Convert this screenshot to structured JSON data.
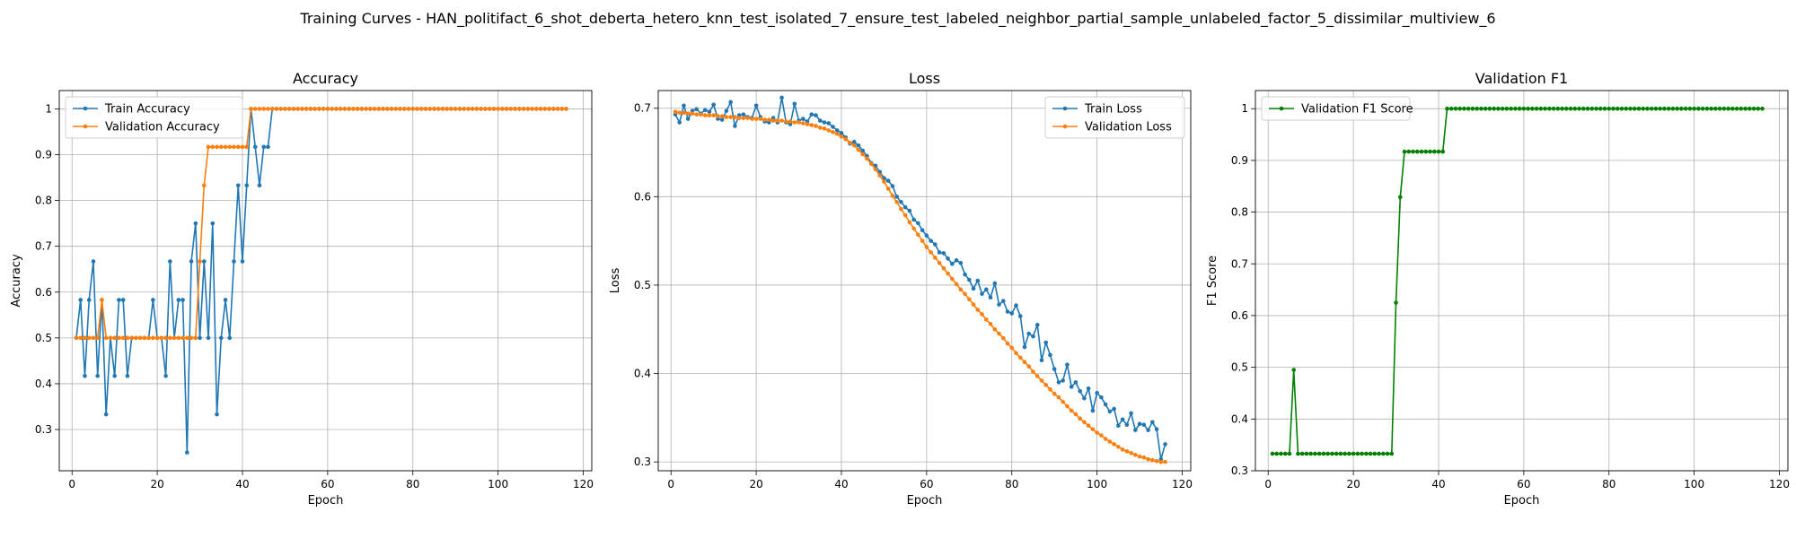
{
  "figure": {
    "title": "Training Curves - HAN_politifact_6_shot_deberta_hetero_knn_test_isolated_7_ensure_test_labeled_neighbor_partial_sample_unlabeled_factor_5_dissimilar_multiview_6"
  },
  "colors": {
    "blue": "#1f77b4",
    "orange": "#ff7f0e",
    "green": "#008000",
    "grid": "#b0b0b0"
  },
  "chart_data": [
    {
      "type": "line",
      "title": "Accuracy",
      "xlabel": "Epoch",
      "ylabel": "Accuracy",
      "xlim": [
        -3,
        122
      ],
      "ylim": [
        0.21,
        1.04
      ],
      "xticks": [
        0,
        20,
        40,
        60,
        80,
        100,
        120
      ],
      "yticks": [
        0.3,
        0.4,
        0.5,
        0.6,
        0.7,
        0.8,
        0.9,
        1.0
      ],
      "grid": true,
      "legend": "upper left",
      "series": [
        {
          "name": "Train Accuracy",
          "color": "#1f77b4",
          "x_start": 1,
          "values": [
            0.5,
            0.583,
            0.417,
            0.583,
            0.667,
            0.417,
            0.583,
            0.333,
            0.5,
            0.417,
            0.583,
            0.583,
            0.417,
            0.5,
            0.5,
            0.5,
            0.5,
            0.5,
            0.583,
            0.5,
            0.5,
            0.417,
            0.667,
            0.5,
            0.583,
            0.583,
            0.25,
            0.667,
            0.75,
            0.5,
            0.667,
            0.5,
            0.75,
            0.333,
            0.5,
            0.583,
            0.5,
            0.667,
            0.833,
            0.667,
            0.833,
            1.0,
            0.917,
            0.833,
            0.917,
            0.917,
            1.0,
            1.0,
            1.0,
            1.0,
            1.0,
            1.0,
            1.0,
            1.0,
            1.0,
            1.0,
            1.0,
            1.0,
            1.0,
            1.0,
            1.0,
            1.0,
            1.0,
            1.0,
            1.0,
            1.0,
            1.0,
            1.0,
            1.0,
            1.0,
            1.0,
            1.0,
            1.0,
            1.0,
            1.0,
            1.0,
            1.0,
            1.0,
            1.0,
            1.0,
            1.0,
            1.0,
            1.0,
            1.0,
            1.0,
            1.0,
            1.0,
            1.0,
            1.0,
            1.0,
            1.0,
            1.0,
            1.0,
            1.0,
            1.0,
            1.0,
            1.0,
            1.0,
            1.0,
            1.0,
            1.0,
            1.0,
            1.0,
            1.0,
            1.0,
            1.0,
            1.0,
            1.0,
            1.0,
            1.0,
            1.0,
            1.0,
            1.0,
            1.0,
            1.0,
            1.0
          ]
        },
        {
          "name": "Validation Accuracy",
          "color": "#ff7f0e",
          "x_start": 1,
          "values": [
            0.5,
            0.5,
            0.5,
            0.5,
            0.5,
            0.5,
            0.583,
            0.5,
            0.5,
            0.5,
            0.5,
            0.5,
            0.5,
            0.5,
            0.5,
            0.5,
            0.5,
            0.5,
            0.5,
            0.5,
            0.5,
            0.5,
            0.5,
            0.5,
            0.5,
            0.5,
            0.5,
            0.5,
            0.5,
            0.667,
            0.833,
            0.917,
            0.917,
            0.917,
            0.917,
            0.917,
            0.917,
            0.917,
            0.917,
            0.917,
            0.917,
            1.0,
            1.0,
            1.0,
            1.0,
            1.0,
            1.0,
            1.0,
            1.0,
            1.0,
            1.0,
            1.0,
            1.0,
            1.0,
            1.0,
            1.0,
            1.0,
            1.0,
            1.0,
            1.0,
            1.0,
            1.0,
            1.0,
            1.0,
            1.0,
            1.0,
            1.0,
            1.0,
            1.0,
            1.0,
            1.0,
            1.0,
            1.0,
            1.0,
            1.0,
            1.0,
            1.0,
            1.0,
            1.0,
            1.0,
            1.0,
            1.0,
            1.0,
            1.0,
            1.0,
            1.0,
            1.0,
            1.0,
            1.0,
            1.0,
            1.0,
            1.0,
            1.0,
            1.0,
            1.0,
            1.0,
            1.0,
            1.0,
            1.0,
            1.0,
            1.0,
            1.0,
            1.0,
            1.0,
            1.0,
            1.0,
            1.0,
            1.0,
            1.0,
            1.0,
            1.0,
            1.0,
            1.0,
            1.0,
            1.0,
            1.0
          ]
        }
      ]
    },
    {
      "type": "line",
      "title": "Loss",
      "xlabel": "Epoch",
      "ylabel": "Loss",
      "xlim": [
        -3,
        122
      ],
      "ylim": [
        0.29,
        0.72
      ],
      "xticks": [
        0,
        20,
        40,
        60,
        80,
        100,
        120
      ],
      "yticks": [
        0.3,
        0.4,
        0.5,
        0.6,
        0.7
      ],
      "grid": true,
      "legend": "upper right",
      "series": [
        {
          "name": "Train Loss",
          "color": "#1f77b4",
          "x_start": 1,
          "values": [
            0.693,
            0.684,
            0.703,
            0.688,
            0.697,
            0.699,
            0.694,
            0.698,
            0.696,
            0.704,
            0.688,
            0.687,
            0.697,
            0.707,
            0.68,
            0.692,
            0.693,
            0.69,
            0.689,
            0.703,
            0.69,
            0.685,
            0.684,
            0.689,
            0.684,
            0.712,
            0.684,
            0.682,
            0.705,
            0.686,
            0.688,
            0.685,
            0.693,
            0.692,
            0.686,
            0.684,
            0.683,
            0.679,
            0.675,
            0.672,
            0.667,
            0.66,
            0.662,
            0.658,
            0.652,
            0.646,
            0.638,
            0.635,
            0.628,
            0.621,
            0.618,
            0.612,
            0.6,
            0.594,
            0.588,
            0.584,
            0.574,
            0.57,
            0.562,
            0.556,
            0.55,
            0.546,
            0.537,
            0.536,
            0.53,
            0.524,
            0.528,
            0.525,
            0.512,
            0.506,
            0.496,
            0.505,
            0.49,
            0.495,
            0.486,
            0.502,
            0.478,
            0.482,
            0.47,
            0.468,
            0.477,
            0.465,
            0.43,
            0.445,
            0.442,
            0.455,
            0.415,
            0.435,
            0.421,
            0.405,
            0.39,
            0.392,
            0.41,
            0.385,
            0.39,
            0.38,
            0.372,
            0.383,
            0.358,
            0.378,
            0.373,
            0.365,
            0.357,
            0.36,
            0.341,
            0.348,
            0.342,
            0.355,
            0.336,
            0.343,
            0.342,
            0.336,
            0.345,
            0.337,
            0.303,
            0.32
          ]
        },
        {
          "name": "Validation Loss",
          "color": "#ff7f0e",
          "x_start": 1,
          "values": [
            0.696,
            0.695,
            0.695,
            0.694,
            0.694,
            0.693,
            0.693,
            0.692,
            0.692,
            0.692,
            0.691,
            0.691,
            0.69,
            0.69,
            0.69,
            0.689,
            0.689,
            0.689,
            0.688,
            0.688,
            0.688,
            0.687,
            0.687,
            0.686,
            0.686,
            0.686,
            0.685,
            0.685,
            0.684,
            0.684,
            0.683,
            0.682,
            0.681,
            0.68,
            0.678,
            0.677,
            0.675,
            0.673,
            0.671,
            0.668,
            0.665,
            0.661,
            0.658,
            0.653,
            0.648,
            0.643,
            0.637,
            0.631,
            0.624,
            0.617,
            0.609,
            0.601,
            0.594,
            0.586,
            0.579,
            0.571,
            0.564,
            0.557,
            0.55,
            0.543,
            0.537,
            0.531,
            0.525,
            0.519,
            0.513,
            0.507,
            0.501,
            0.495,
            0.49,
            0.484,
            0.478,
            0.472,
            0.467,
            0.461,
            0.456,
            0.45,
            0.445,
            0.44,
            0.434,
            0.429,
            0.423,
            0.418,
            0.413,
            0.408,
            0.402,
            0.397,
            0.392,
            0.387,
            0.382,
            0.377,
            0.373,
            0.368,
            0.363,
            0.358,
            0.354,
            0.349,
            0.345,
            0.341,
            0.337,
            0.333,
            0.33,
            0.326,
            0.323,
            0.32,
            0.317,
            0.314,
            0.312,
            0.31,
            0.308,
            0.306,
            0.305,
            0.303,
            0.302,
            0.301,
            0.3,
            0.3
          ]
        }
      ]
    },
    {
      "type": "line",
      "title": "Validation F1",
      "xlabel": "Epoch",
      "ylabel": "F1 Score",
      "xlim": [
        -3,
        122
      ],
      "ylim": [
        0.3,
        1.035
      ],
      "xticks": [
        0,
        20,
        40,
        60,
        80,
        100,
        120
      ],
      "yticks": [
        0.3,
        0.4,
        0.5,
        0.6,
        0.7,
        0.8,
        0.9,
        1.0
      ],
      "grid": true,
      "legend": "upper left",
      "series": [
        {
          "name": "Validation F1 Score",
          "color": "#008000",
          "x_start": 1,
          "values": [
            0.333,
            0.333,
            0.333,
            0.333,
            0.333,
            0.495,
            0.333,
            0.333,
            0.333,
            0.333,
            0.333,
            0.333,
            0.333,
            0.333,
            0.333,
            0.333,
            0.333,
            0.333,
            0.333,
            0.333,
            0.333,
            0.333,
            0.333,
            0.333,
            0.333,
            0.333,
            0.333,
            0.333,
            0.333,
            0.625,
            0.829,
            0.917,
            0.917,
            0.917,
            0.917,
            0.917,
            0.917,
            0.917,
            0.917,
            0.917,
            0.917,
            1.0,
            1.0,
            1.0,
            1.0,
            1.0,
            1.0,
            1.0,
            1.0,
            1.0,
            1.0,
            1.0,
            1.0,
            1.0,
            1.0,
            1.0,
            1.0,
            1.0,
            1.0,
            1.0,
            1.0,
            1.0,
            1.0,
            1.0,
            1.0,
            1.0,
            1.0,
            1.0,
            1.0,
            1.0,
            1.0,
            1.0,
            1.0,
            1.0,
            1.0,
            1.0,
            1.0,
            1.0,
            1.0,
            1.0,
            1.0,
            1.0,
            1.0,
            1.0,
            1.0,
            1.0,
            1.0,
            1.0,
            1.0,
            1.0,
            1.0,
            1.0,
            1.0,
            1.0,
            1.0,
            1.0,
            1.0,
            1.0,
            1.0,
            1.0,
            1.0,
            1.0,
            1.0,
            1.0,
            1.0,
            1.0,
            1.0,
            1.0,
            1.0,
            1.0,
            1.0,
            1.0,
            1.0,
            1.0,
            1.0,
            1.0
          ]
        }
      ]
    }
  ]
}
